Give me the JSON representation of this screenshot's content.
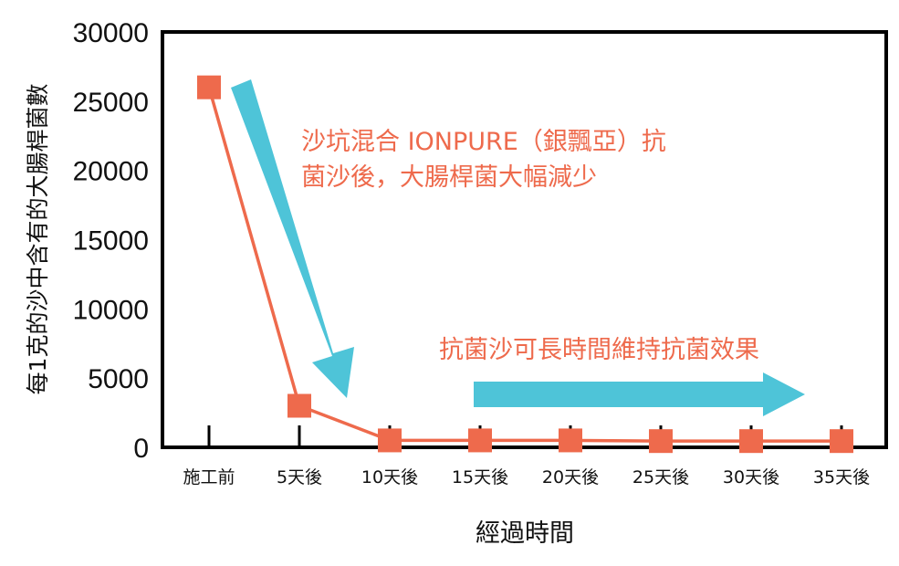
{
  "chart_data": {
    "type": "line",
    "categories": [
      "施工前",
      "5天後",
      "10天後",
      "15天後",
      "20天後",
      "25天後",
      "30天後",
      "35天後"
    ],
    "series": [
      {
        "values": [
          26000,
          3000,
          500,
          500,
          500,
          450,
          450,
          450
        ]
      }
    ],
    "xlabel": "經過時間",
    "ylabel": "每1克的沙中含有的大腸桿菌數",
    "ylim": [
      0,
      30000
    ],
    "yticks": [
      0,
      5000,
      10000,
      15000,
      20000,
      25000,
      30000
    ],
    "grid": false,
    "annotations": {
      "decline_line1": "沙坑混合 IONPURE（銀飄亞）抗",
      "decline_line2": "菌沙後，大腸桿菌大幅減少",
      "sustain": "抗菌沙可長時間維持抗菌效果"
    },
    "colors": {
      "line": "#ee6a4c",
      "marker": "#ee6a4c",
      "arrow": "#4ec4d8",
      "annotation_text": "#ee6a4c",
      "axis": "#000000"
    }
  }
}
